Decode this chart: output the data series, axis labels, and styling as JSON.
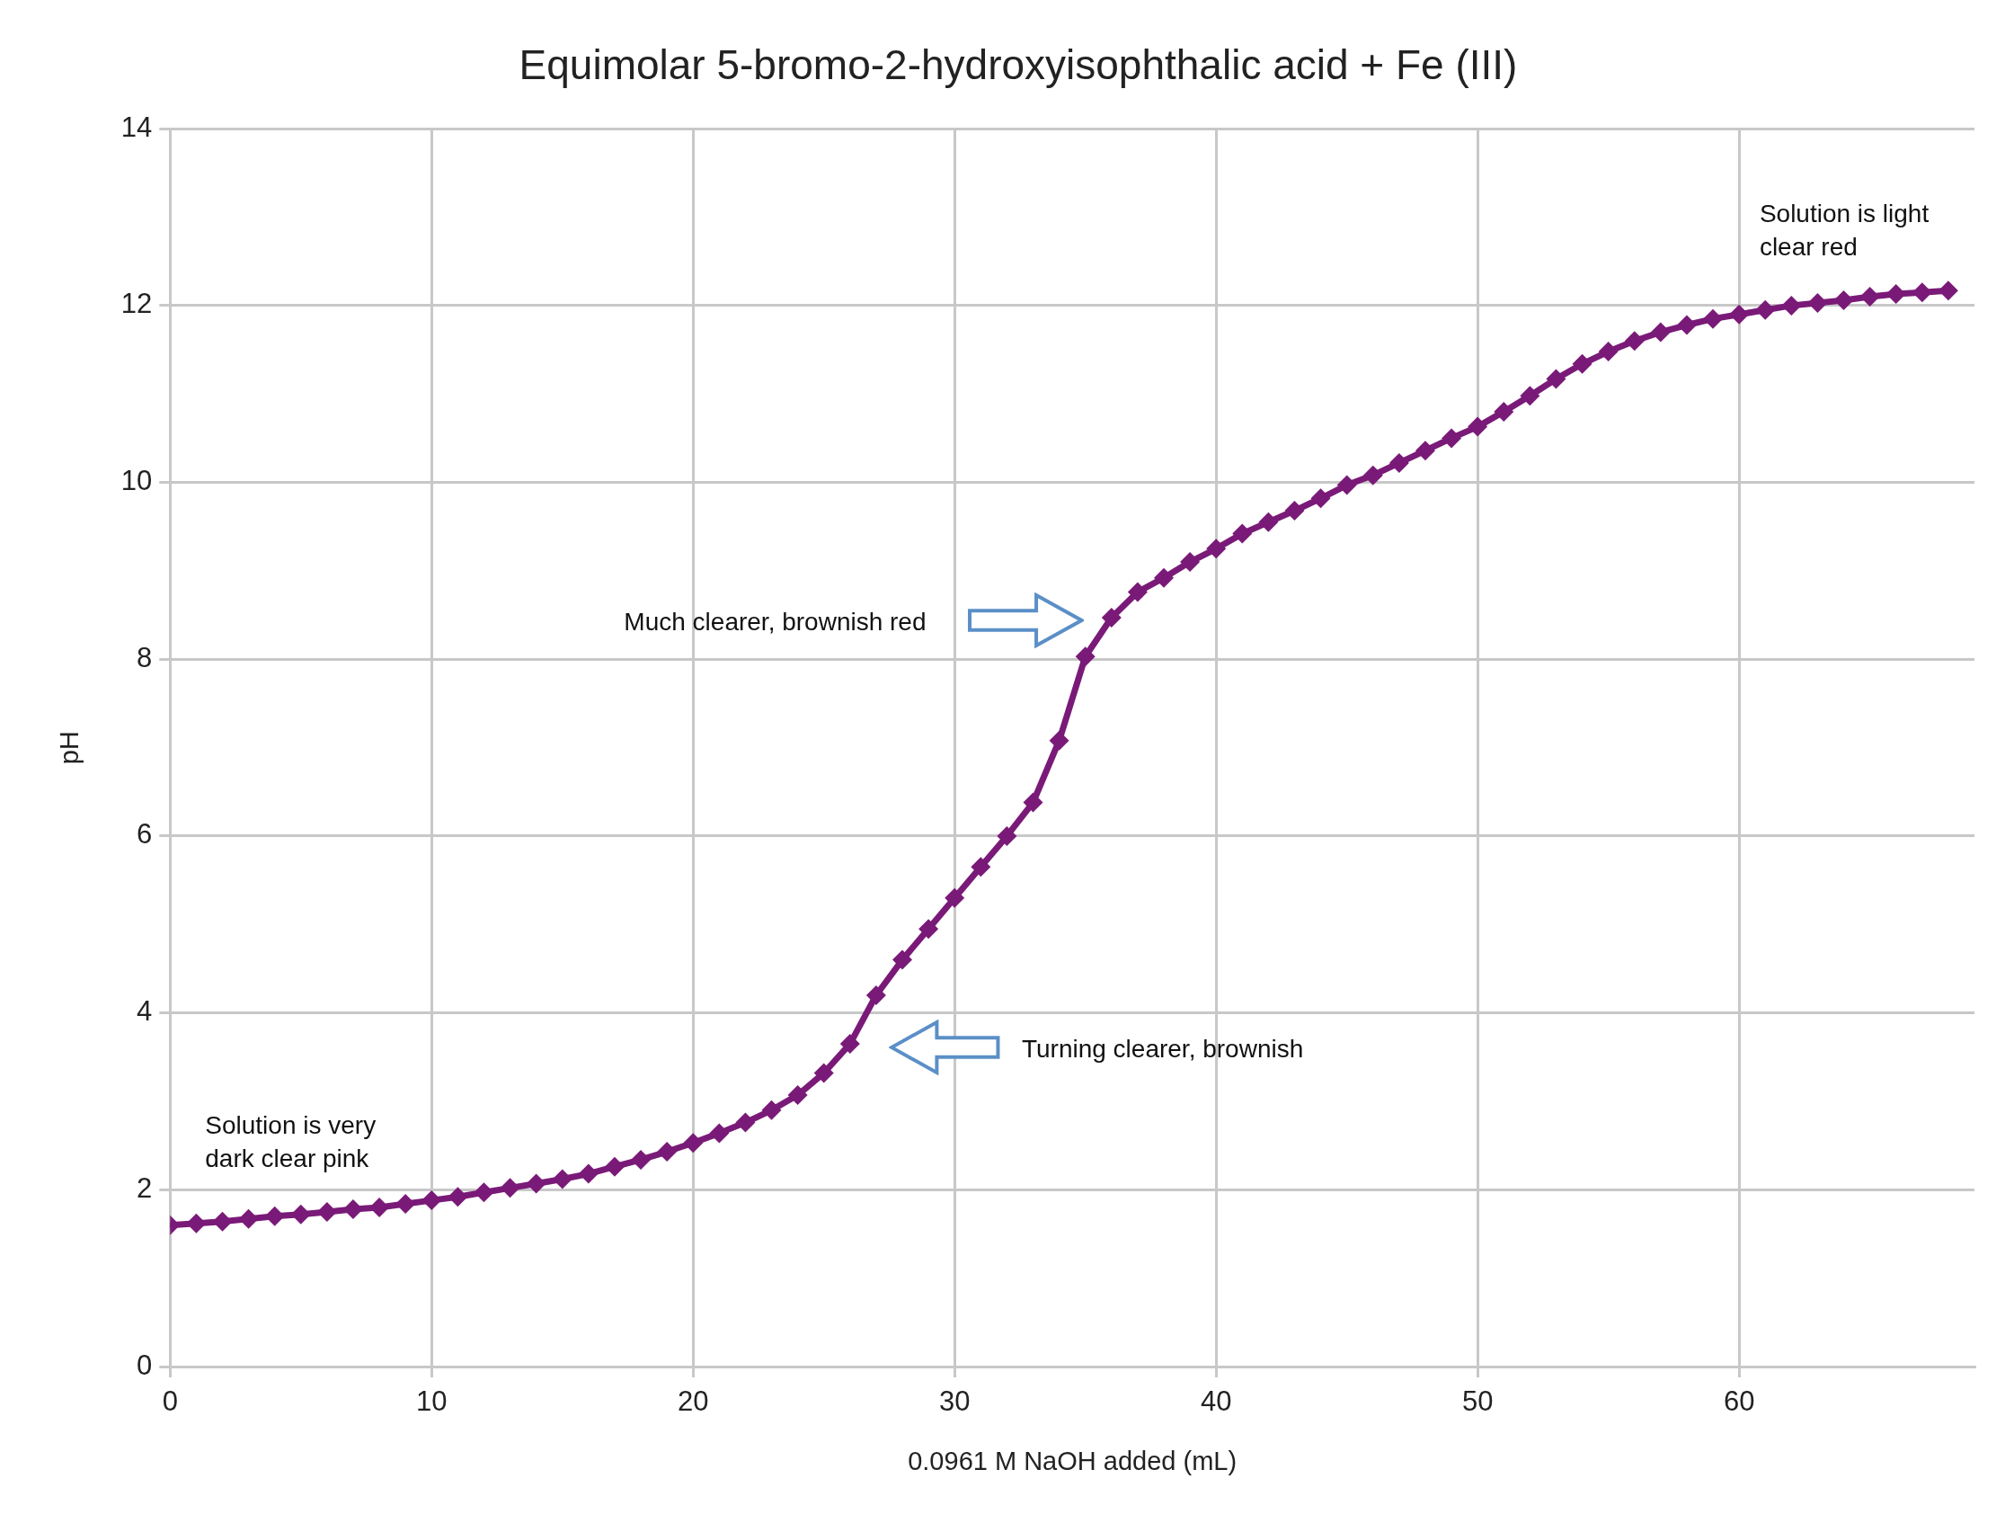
{
  "chart_data": {
    "type": "line",
    "title": "Equimolar 5-bromo-2-hydroxyisophthalic acid + Fe (III)",
    "xlabel": "0.0961 M NaOH added (mL)",
    "ylabel": "pH",
    "x": [
      0,
      1,
      2,
      3,
      4,
      5,
      6,
      7,
      8,
      9,
      10,
      11,
      12,
      13,
      14,
      15,
      16,
      17,
      18,
      19,
      20,
      21,
      22,
      23,
      24,
      25,
      26,
      27,
      28,
      29,
      30,
      31,
      32,
      33,
      34,
      35,
      36,
      37,
      38,
      39,
      40,
      41,
      42,
      43,
      44,
      45,
      46,
      47,
      48,
      49,
      50,
      51,
      52,
      53,
      54,
      55,
      56,
      57,
      58,
      59,
      60,
      61,
      62,
      63,
      64,
      65,
      66,
      67,
      68
    ],
    "series": [
      {
        "color": "#7a1a78",
        "values": [
          1.6,
          1.62,
          1.64,
          1.67,
          1.7,
          1.72,
          1.75,
          1.78,
          1.8,
          1.84,
          1.88,
          1.92,
          1.97,
          2.02,
          2.07,
          2.12,
          2.18,
          2.26,
          2.34,
          2.43,
          2.53,
          2.64,
          2.76,
          2.9,
          3.07,
          3.32,
          3.65,
          4.2,
          4.6,
          4.95,
          5.3,
          5.65,
          6.0,
          6.38,
          7.08,
          8.03,
          8.47,
          8.76,
          8.92,
          9.1,
          9.25,
          9.42,
          9.55,
          9.68,
          9.82,
          9.97,
          10.08,
          10.22,
          10.36,
          10.5,
          10.63,
          10.8,
          10.98,
          11.17,
          11.34,
          11.48,
          11.6,
          11.7,
          11.78,
          11.85,
          11.9,
          11.95,
          12.0,
          12.03,
          12.06,
          12.1,
          12.13,
          12.15,
          12.17
        ]
      }
    ],
    "xlim": [
      0,
      69
    ],
    "xticks": [
      0,
      10,
      20,
      30,
      40,
      50,
      60
    ],
    "ylim": [
      0,
      14
    ],
    "yticks": [
      0,
      2,
      4,
      6,
      8,
      10,
      12,
      14
    ],
    "grid": true,
    "legend": false,
    "marker": "diamond",
    "line_style": "solid",
    "annotations": [
      {
        "text": "Solution is very dark clear pink",
        "x": 0,
        "y": 1.6
      },
      "Turning clearer, brownish",
      "Much clearer, brownish red",
      {
        "text": "Solution is light clear red",
        "x": 68,
        "y": 12.17
      }
    ]
  }
}
